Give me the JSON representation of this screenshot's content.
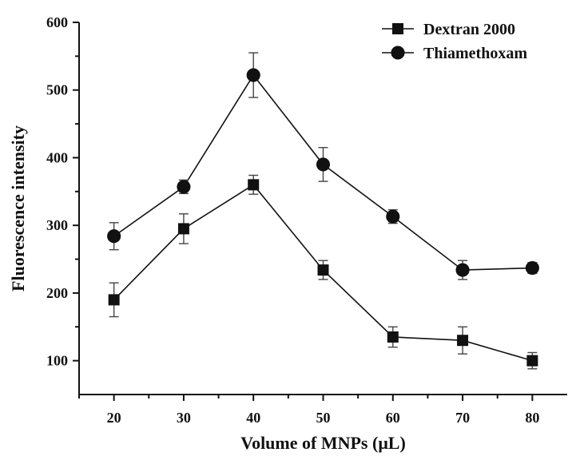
{
  "chart_data": {
    "type": "line",
    "title": "",
    "xlabel": "Volume of MNPs (μL)",
    "ylabel": "Fluorescence intensity",
    "x": [
      20,
      30,
      40,
      50,
      60,
      70,
      80
    ],
    "xlim": [
      15,
      85
    ],
    "ylim": [
      50,
      600
    ],
    "xticks": [
      20,
      30,
      40,
      50,
      60,
      70,
      80
    ],
    "yticks": [
      100,
      200,
      300,
      400,
      500,
      600
    ],
    "grid": false,
    "legend_position": "top-right",
    "series": [
      {
        "name": "Dextran 2000",
        "marker": "square",
        "values": [
          190,
          295,
          360,
          234,
          135,
          130,
          100
        ],
        "errors": [
          25,
          22,
          14,
          14,
          15,
          20,
          12
        ]
      },
      {
        "name": "Thiamethoxam",
        "marker": "circle",
        "values": [
          284,
          357,
          522,
          390,
          313,
          234,
          237
        ],
        "errors": [
          20,
          10,
          33,
          25,
          10,
          14,
          8
        ]
      }
    ],
    "colors": {
      "axis": "#111111",
      "series": "#111111",
      "error": "#444444"
    }
  }
}
